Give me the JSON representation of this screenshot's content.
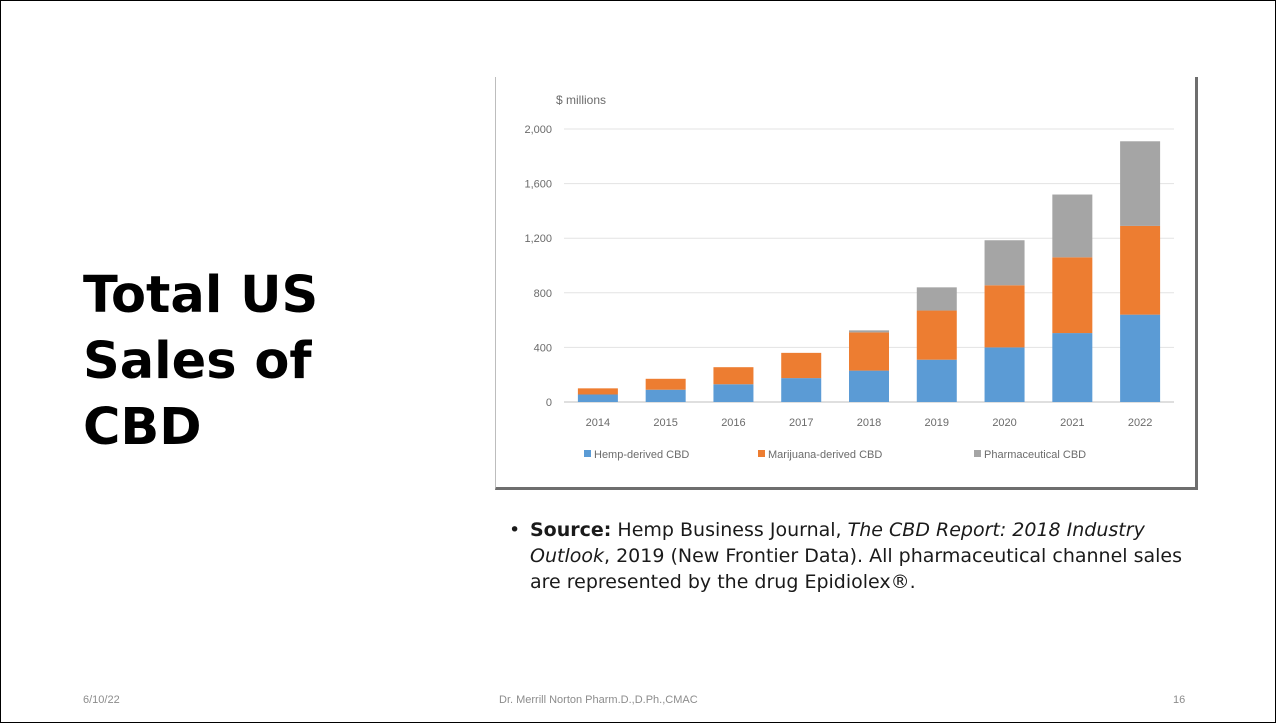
{
  "slide": {
    "title_lines": [
      "Total US",
      "Sales of",
      "CBD"
    ],
    "source": {
      "bullet": "•",
      "label": "Source:",
      "text1": " Hemp Business Journal, ",
      "italic": "The CBD Report: 2018 Industry Outlook",
      "text2": ", 2019 (New Frontier Data). All pharmaceutical channel sales are represented by the drug Epidiolex®."
    },
    "footer": {
      "date": "6/10/22",
      "author": "Dr. Merrill Norton Pharm.D.,D.Ph.,CMAC",
      "page": "16"
    }
  },
  "chart_data": {
    "type": "bar",
    "stacked": true,
    "ylabel": "$ millions",
    "ylim": [
      0,
      2000
    ],
    "yticks": [
      0,
      400,
      800,
      1200,
      1600,
      2000
    ],
    "ytick_labels": [
      "0",
      "400",
      "800",
      "1,200",
      "1,600",
      "2,000"
    ],
    "grid": true,
    "legend_position": "bottom",
    "categories": [
      "2014",
      "2015",
      "2016",
      "2017",
      "2018",
      "2019",
      "2020",
      "2021",
      "2022"
    ],
    "series": [
      {
        "name": "Hemp-derived CBD",
        "color": "#5b9bd5",
        "values": [
          55,
          90,
          130,
          175,
          230,
          310,
          400,
          505,
          640
        ]
      },
      {
        "name": "Marijuana-derived CBD",
        "color": "#ed7d31",
        "values": [
          45,
          80,
          125,
          185,
          280,
          360,
          455,
          555,
          650
        ]
      },
      {
        "name": "Pharmaceutical CBD",
        "color": "#a5a5a5",
        "values": [
          0,
          0,
          0,
          0,
          15,
          170,
          330,
          460,
          620
        ]
      }
    ]
  }
}
